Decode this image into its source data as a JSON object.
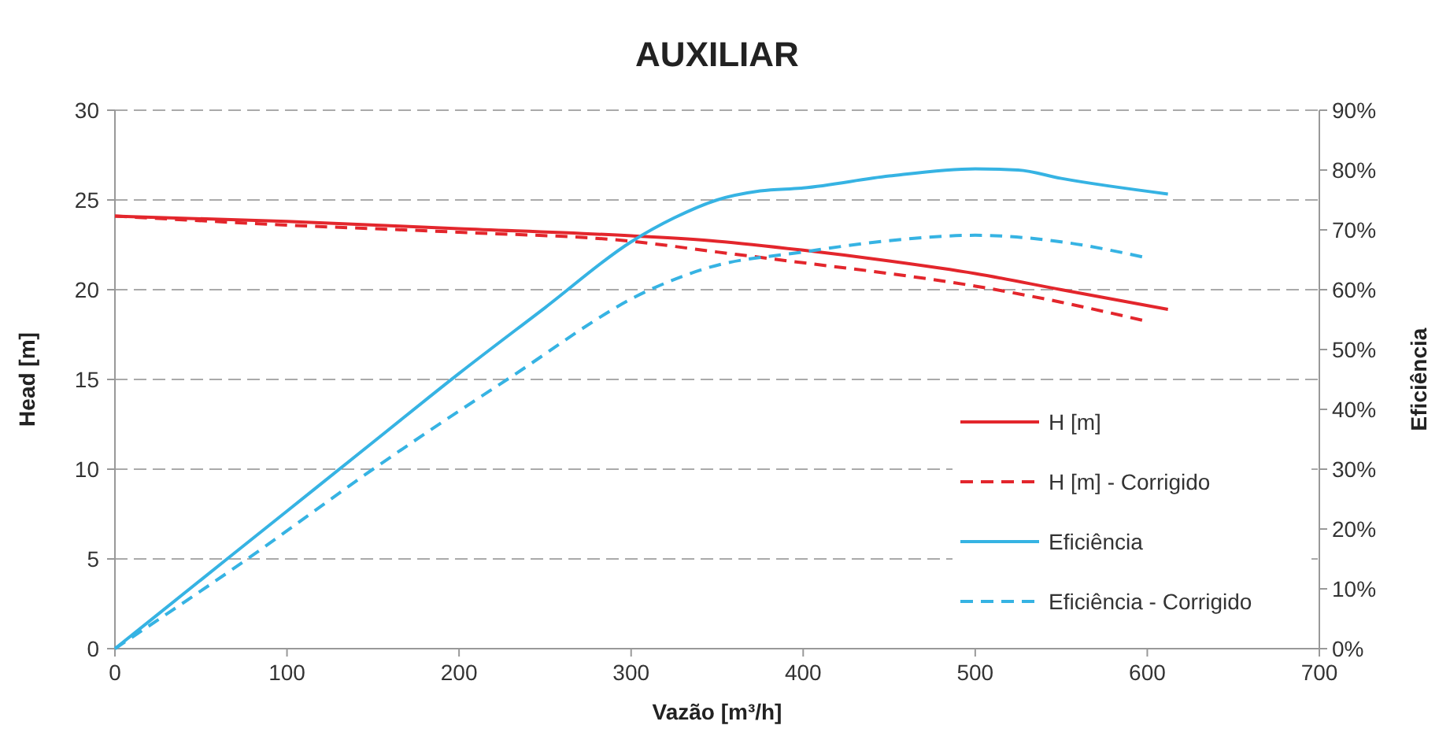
{
  "chart_data": {
    "type": "line",
    "title": "AUXILIAR",
    "xlabel": "Vazão [m³/h]",
    "ylabel": "Head [m]",
    "y2label": "Eficiência",
    "xlim": [
      0,
      700
    ],
    "xticks": [
      0,
      100,
      200,
      300,
      400,
      500,
      600,
      700
    ],
    "ylim": [
      0,
      30
    ],
    "yticks": [
      0,
      5,
      10,
      15,
      20,
      25,
      30
    ],
    "y2lim": [
      0,
      90
    ],
    "y2ticks": [
      {
        "value": 0,
        "label": "0%"
      },
      {
        "value": 10,
        "label": "10%"
      },
      {
        "value": 20,
        "label": "20%"
      },
      {
        "value": 30,
        "label": "30%"
      },
      {
        "value": 40,
        "label": "40%"
      },
      {
        "value": 50,
        "label": "50%"
      },
      {
        "value": 60,
        "label": "60%"
      },
      {
        "value": 70,
        "label": "70%"
      },
      {
        "value": 80,
        "label": "80%"
      },
      {
        "value": 90,
        "label": "90%"
      }
    ],
    "grid": "y",
    "legend": "right",
    "marker": "none",
    "series": [
      {
        "name": "H [m]",
        "color": "#e3262c",
        "line_style": "solid",
        "x": [
          0,
          100,
          200,
          300,
          350,
          400,
          450,
          500,
          550,
          612
        ],
        "values": [
          24.1,
          23.8,
          23.4,
          23.0,
          22.7,
          22.2,
          21.6,
          20.9,
          20.0,
          18.9
        ]
      },
      {
        "name": "H [m] - Corrigido",
        "color": "#e3262c",
        "line_style": "dashed",
        "x": [
          0,
          100,
          200,
          300,
          350,
          400,
          450,
          500,
          550,
          597
        ],
        "values": [
          24.1,
          23.6,
          23.2,
          22.7,
          22.1,
          21.5,
          20.9,
          20.2,
          19.3,
          18.3
        ]
      },
      {
        "name": "Eficiência",
        "color": "#36b3e3",
        "line_style": "solid",
        "axis": "y2",
        "x": [
          0,
          50,
          100,
          150,
          200,
          250,
          300,
          325,
          350,
          375,
          400,
          450,
          500,
          525,
          550,
          612
        ],
        "values": [
          0,
          11.5,
          23,
          34.5,
          46,
          57,
          68,
          72,
          75,
          76.5,
          77,
          79,
          80.2,
          80,
          78.6,
          76
        ]
      },
      {
        "name": "Eficiência - Corrigido",
        "color": "#36b3e3",
        "line_style": "dashed",
        "axis": "y2",
        "x": [
          0,
          77,
          150,
          228,
          311,
          345,
          400,
          450,
          500,
          550,
          597
        ],
        "values": [
          0,
          15,
          30,
          45,
          60,
          63.7,
          66.3,
          68.2,
          69.1,
          68,
          65.5
        ]
      }
    ]
  }
}
